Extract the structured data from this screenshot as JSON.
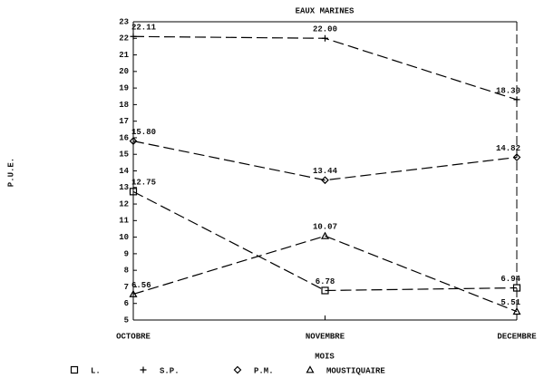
{
  "chart_data": {
    "type": "line",
    "title": "EAUX MARINES",
    "x_label": "MOIS",
    "y_label": "P.U.E.",
    "categories": [
      "OCTOBRE",
      "NOVEMBRE",
      "DECEMBRE"
    ],
    "series": [
      {
        "name": "L.",
        "marker": "square",
        "color": "#000000",
        "values": [
          12.75,
          6.78,
          6.94
        ],
        "value_labels": [
          "12.75",
          "6.78",
          "6.94"
        ]
      },
      {
        "name": "S.P.",
        "marker": "plus",
        "color": "#000000",
        "values": [
          22.11,
          22.0,
          18.3
        ],
        "value_labels": [
          "22.11",
          "22.00",
          "18.30"
        ]
      },
      {
        "name": "P.M.",
        "marker": "diamond",
        "color": "#000000",
        "values": [
          15.8,
          13.44,
          14.82
        ],
        "value_labels": [
          "15.80",
          "13.44",
          "14.82"
        ]
      },
      {
        "name": "MOUSTIQUAIRE",
        "marker": "triangle",
        "color": "#000000",
        "values": [
          6.56,
          10.07,
          5.51
        ],
        "value_labels": [
          "6.56",
          "10.07",
          "5.51"
        ]
      }
    ],
    "ylim": [
      5,
      23
    ],
    "yticks": [
      5,
      6,
      7,
      8,
      9,
      10,
      11,
      12,
      13,
      14,
      15,
      16,
      17,
      18,
      19,
      20,
      21,
      22,
      23
    ],
    "grid": false
  }
}
